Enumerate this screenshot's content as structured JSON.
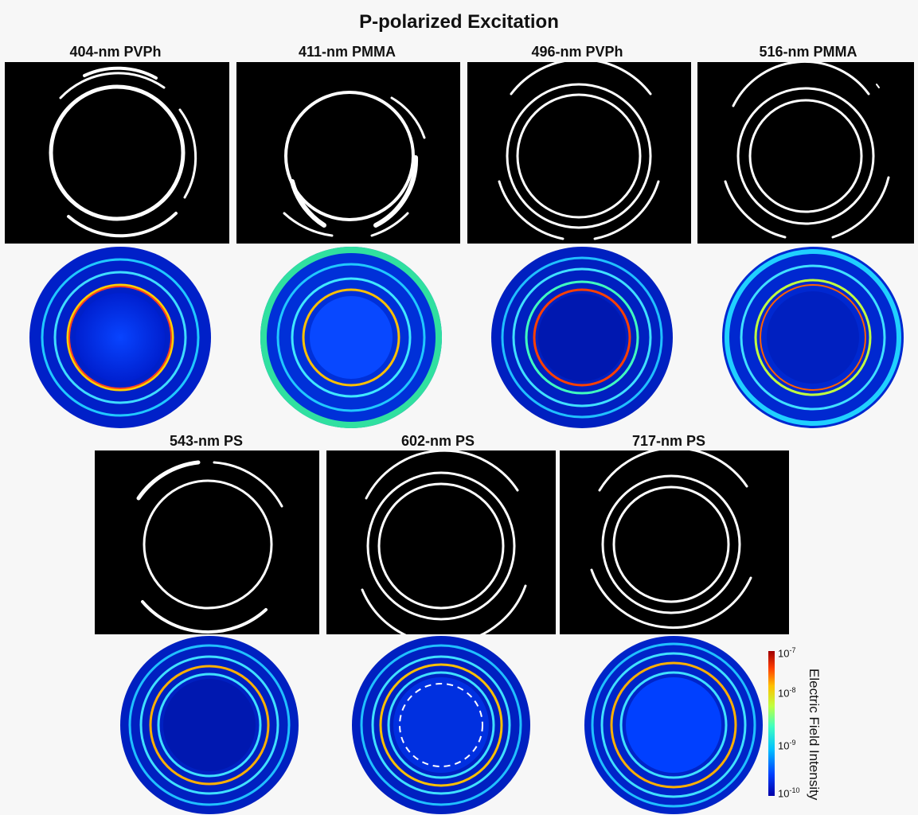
{
  "title": "P-polarized Excitation",
  "panels": [
    {
      "label": "404-nm PVPh"
    },
    {
      "label": "411-nm PMMA"
    },
    {
      "label": "496-nm PVPh"
    },
    {
      "label": "516-nm PMMA"
    },
    {
      "label": "543-nm PS"
    },
    {
      "label": "602-nm PS"
    },
    {
      "label": "717-nm PS"
    }
  ],
  "colorbar": {
    "title": "Electric Field Intensity",
    "ticks": [
      {
        "base": "10",
        "exp": "-7"
      },
      {
        "base": "10",
        "exp": "-8"
      },
      {
        "base": "10",
        "exp": "-9"
      },
      {
        "base": "10",
        "exp": "-10"
      }
    ],
    "colors": [
      "#0000a8",
      "#0040ff",
      "#00c0ff",
      "#40ffc0",
      "#c0ff40",
      "#ffc000",
      "#ff4000",
      "#a00000"
    ]
  }
}
